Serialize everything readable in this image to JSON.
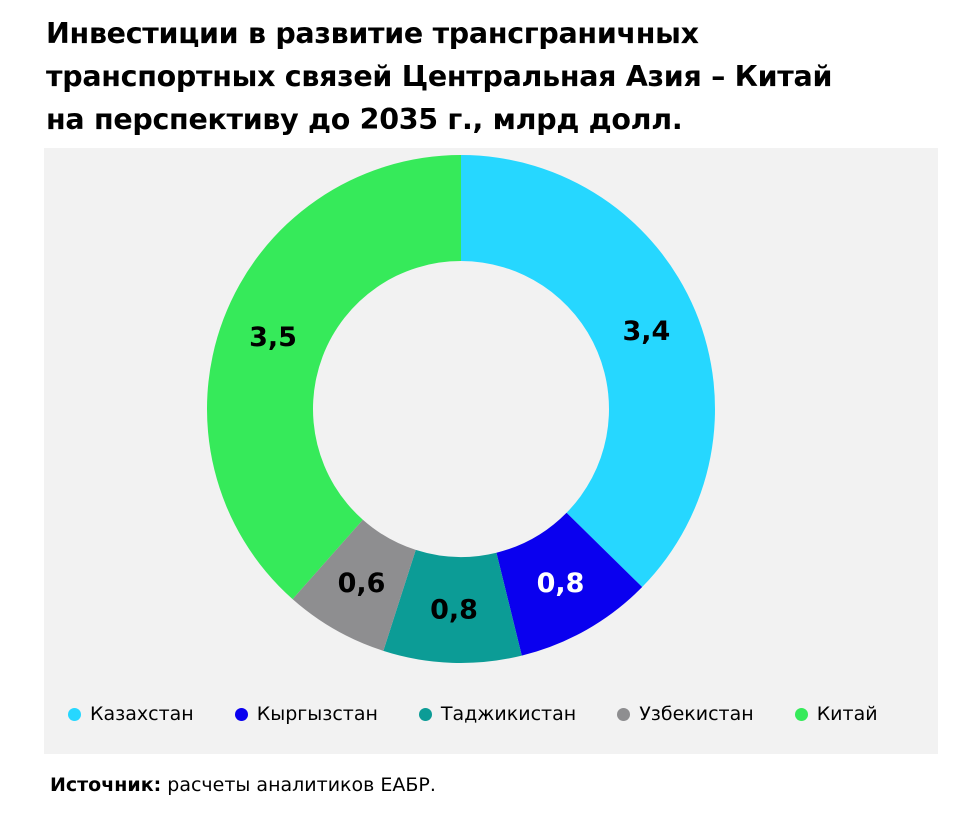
{
  "title_lines": [
    "Инвестиции в развитие трансграничных",
    "транспортных связей Центральная Азия – Китай",
    "на перспективу до 2035 г., млрд долл."
  ],
  "chart_data": {
    "type": "pie",
    "donut": true,
    "start_angle_deg": 0,
    "direction": "clockwise",
    "legend_position": "bottom",
    "categories": [
      "Казахстан",
      "Кыргызстан",
      "Таджикистан",
      "Узбекистан",
      "Китай"
    ],
    "values": [
      3.4,
      0.8,
      0.8,
      0.6,
      3.5
    ],
    "data_labels": [
      "3,4",
      "0,8",
      "0,8",
      "0,6",
      "3,5"
    ],
    "colors": [
      "#26d7ff",
      "#0a00ef",
      "#0c9c96",
      "#8e8e90",
      "#36ea5a"
    ],
    "label_colors": [
      "#000000",
      "#ffffff",
      "#000000",
      "#000000",
      "#000000"
    ]
  },
  "source": {
    "label": "Источник:",
    "text": " расчеты аналитиков ЕАБР."
  }
}
